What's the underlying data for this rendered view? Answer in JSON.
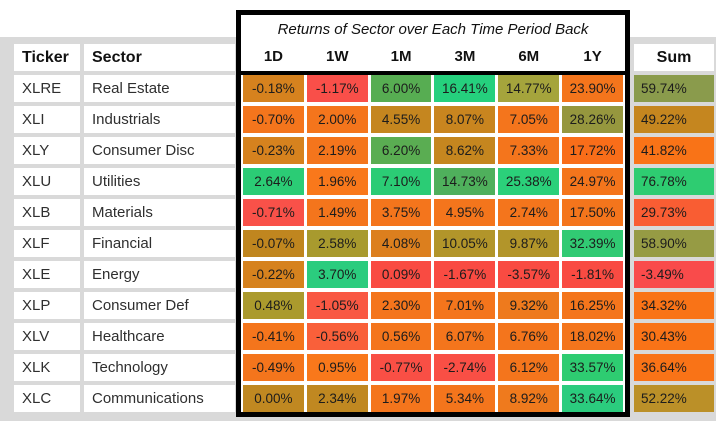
{
  "page": {
    "background_color": "#d9d9d9",
    "cell_text_color": "#1c1c1c"
  },
  "table": {
    "title": "Returns of Sector over Each Time Period Back",
    "ticker_header": "Ticker",
    "sector_header": "Sector",
    "sum_header": "Sum"
  },
  "chart_data": {
    "type": "heatmap",
    "title": "Returns of Sector over Each Time Period Back",
    "units": "percent",
    "columns": [
      "1D",
      "1W",
      "1M",
      "3M",
      "6M",
      "1Y"
    ],
    "sum_label": "Sum",
    "rows": [
      {
        "ticker": "XLRE",
        "sector": "Real Estate",
        "values": [
          -0.18,
          -1.17,
          6.0,
          16.41,
          14.77,
          23.9
        ],
        "sum": 59.74,
        "colors": [
          "#d6821e",
          "#f94f49",
          "#57ad52",
          "#25d07d",
          "#a5a43c",
          "#f4751c"
        ],
        "sum_color": "#8a9b4c"
      },
      {
        "ticker": "XLI",
        "sector": "Industrials",
        "values": [
          -0.7,
          2.0,
          4.55,
          8.07,
          7.05,
          28.26
        ],
        "sum": 49.22,
        "colors": [
          "#f4751c",
          "#f4751c",
          "#c5861f",
          "#c9851f",
          "#f4751c",
          "#96973e"
        ],
        "sum_color": "#c5861f"
      },
      {
        "ticker": "XLY",
        "sector": "Consumer Disc",
        "values": [
          -0.23,
          2.19,
          6.2,
          8.62,
          7.33,
          17.72
        ],
        "sum": 41.82,
        "colors": [
          "#d6821e",
          "#f4751c",
          "#5aad52",
          "#c5861f",
          "#f4751c",
          "#f96d19"
        ],
        "sum_color": "#f97317"
      },
      {
        "ticker": "XLU",
        "sector": "Utilities",
        "values": [
          2.64,
          1.96,
          7.1,
          14.73,
          25.38,
          24.97
        ],
        "sum": 76.78,
        "colors": [
          "#2bcc75",
          "#f9781b",
          "#2bcc75",
          "#4fb05c",
          "#2bd07a",
          "#f4751c"
        ],
        "sum_color": "#2ecc71"
      },
      {
        "ticker": "XLB",
        "sector": "Materials",
        "values": [
          -0.71,
          1.49,
          3.75,
          4.95,
          2.74,
          17.5
        ],
        "sum": 29.73,
        "colors": [
          "#f95149",
          "#f4751c",
          "#f4751c",
          "#f4751c",
          "#f4751c",
          "#f4751c"
        ],
        "sum_color": "#f95d33"
      },
      {
        "ticker": "XLF",
        "sector": "Financial",
        "values": [
          -0.07,
          2.58,
          4.08,
          10.05,
          9.87,
          32.39
        ],
        "sum": 58.9,
        "colors": [
          "#c0861f",
          "#a89a2e",
          "#dc7f1e",
          "#b2952a",
          "#b2952a",
          "#31ca73"
        ],
        "sum_color": "#969b44"
      },
      {
        "ticker": "XLE",
        "sector": "Energy",
        "values": [
          -0.22,
          3.7,
          0.09,
          -1.67,
          -3.57,
          -1.81
        ],
        "sum": -3.49,
        "colors": [
          "#d6821e",
          "#2bcc7e",
          "#f94b42",
          "#f94b42",
          "#f94b42",
          "#f94b42"
        ],
        "sum_color": "#f94b4b"
      },
      {
        "ticker": "XLP",
        "sector": "Consumer Def",
        "values": [
          0.48,
          -1.05,
          2.3,
          7.01,
          9.32,
          16.25
        ],
        "sum": 34.32,
        "colors": [
          "#ab9a2d",
          "#f95843",
          "#f4751c",
          "#f4751c",
          "#ee7a1d",
          "#f4751c"
        ],
        "sum_color": "#f97317"
      },
      {
        "ticker": "XLV",
        "sector": "Healthcare",
        "values": [
          -0.41,
          -0.56,
          0.56,
          6.07,
          6.76,
          18.02
        ],
        "sum": 30.43,
        "colors": [
          "#f4751c",
          "#f9603a",
          "#f4751c",
          "#f4751c",
          "#f4751c",
          "#f4751c"
        ],
        "sum_color": "#f97317"
      },
      {
        "ticker": "XLK",
        "sector": "Technology",
        "values": [
          -0.49,
          0.95,
          -0.77,
          -2.74,
          6.12,
          33.57
        ],
        "sum": 36.64,
        "colors": [
          "#f4751c",
          "#f9781b",
          "#f94f45",
          "#f94f45",
          "#f4751c",
          "#2ecc71"
        ],
        "sum_color": "#f97317"
      },
      {
        "ticker": "XLC",
        "sector": "Communications",
        "values": [
          0.0,
          2.34,
          1.97,
          5.34,
          8.92,
          33.64
        ],
        "sum": 52.22,
        "colors": [
          "#c08821",
          "#c08821",
          "#f4751c",
          "#f4751c",
          "#ef7a1d",
          "#2bcc7e"
        ],
        "sum_color": "#bb9028"
      }
    ]
  }
}
